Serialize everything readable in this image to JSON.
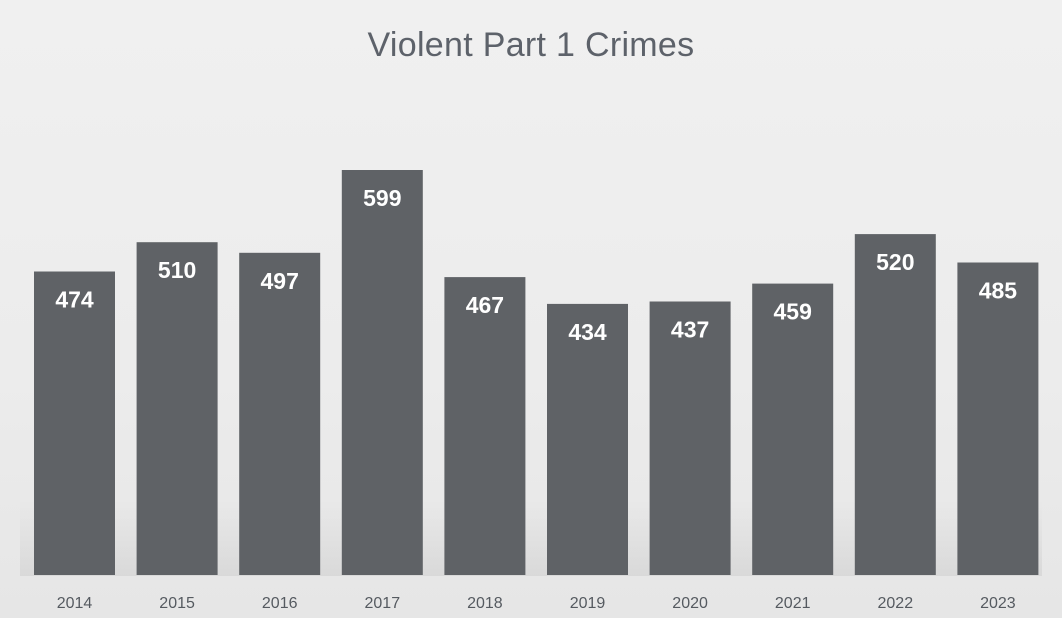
{
  "chart_data": {
    "type": "bar",
    "title": "Violent Part 1 Crimes",
    "categories": [
      "2014",
      "2015",
      "2016",
      "2017",
      "2018",
      "2019",
      "2020",
      "2021",
      "2022",
      "2023"
    ],
    "values": [
      474,
      510,
      497,
      599,
      467,
      434,
      437,
      459,
      520,
      485
    ],
    "xlabel": "",
    "ylabel": "",
    "ylim": [
      0,
      599
    ],
    "grid": false,
    "legend": "none",
    "data_labels": true,
    "bar_color": "#5f6266",
    "label_color": "#ffffff"
  }
}
